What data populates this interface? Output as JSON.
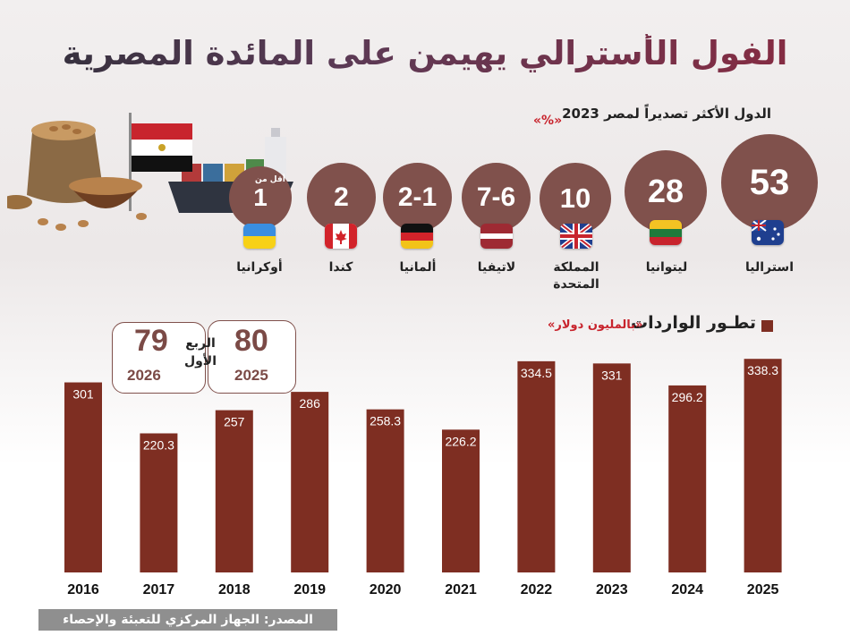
{
  "title": "الفول الأسترالي يهيمن على المائدة المصرية",
  "exporters": {
    "subtitle": "الدول الأكثر تصديراً لمصر 2023",
    "unit": "«%»",
    "small_note": "أقل من",
    "items": [
      {
        "country": "استراليا",
        "value": "53",
        "flag": "australia-flag"
      },
      {
        "country": "ليتوانيا",
        "value": "28",
        "flag": "lithuania-flag"
      },
      {
        "country": "المملكة المتحدة",
        "value": "10",
        "flag": "uk-flag"
      },
      {
        "country": "لاتيفيا",
        "value": "7-6",
        "flag": "latvia-flag"
      },
      {
        "country": "ألمانيا",
        "value": "2-1",
        "flag": "germany-flag"
      },
      {
        "country": "كندا",
        "value": "2",
        "flag": "canada-flag"
      },
      {
        "country": "أوكرانيا",
        "value": "1",
        "flag": "ukraine-flag"
      }
    ]
  },
  "imports": {
    "legend": "تطـور الواردات",
    "unit": "«بالمليون دولار»"
  },
  "first_quarter": {
    "label": "الربع الأول",
    "items": [
      {
        "value": "79",
        "year": "2026"
      },
      {
        "value": "80",
        "year": "2025"
      }
    ]
  },
  "source": "المصدر: الجهاز المركزي للتعبئة والإحصاء",
  "colors": {
    "bar": "#7e2e22",
    "circle": "#80514c",
    "accent": "#c8242d"
  },
  "chart_data": {
    "type": "bar",
    "title": "تطـور الواردات",
    "ylabel": "«بالمليون دولار»",
    "categories": [
      "2016",
      "2017",
      "2018",
      "2019",
      "2020",
      "2021",
      "2022",
      "2023",
      "2024",
      "2025"
    ],
    "values": [
      301,
      220.3,
      257,
      286,
      258.3,
      226.2,
      334.5,
      331,
      296.2,
      338.3
    ],
    "value_labels": [
      "301",
      "220.3",
      "257",
      "286",
      "258.3",
      "226.2",
      "334.5",
      "331",
      "296.2",
      "338.3"
    ],
    "ylim": [
      0,
      340
    ],
    "grid": false,
    "legend": "top-right"
  }
}
